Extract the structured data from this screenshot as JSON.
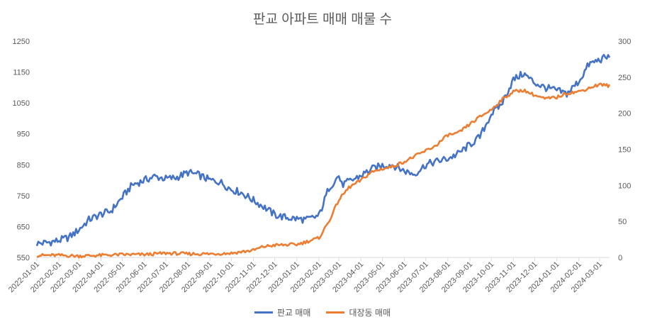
{
  "chart_data": {
    "type": "line",
    "title": "판교 아파트 매매 매물 수",
    "xlabel": "",
    "ylabel": "",
    "x_start": "2022-01-01",
    "x_end": "2024-03-15",
    "x_ticks": [
      "2022-01-01",
      "2022-02-01",
      "2022-03-01",
      "2022-04-01",
      "2022-05-01",
      "2022-06-01",
      "2022-07-01",
      "2022-08-01",
      "2022-09-01",
      "2022-10-01",
      "2022-11-01",
      "2022-12-01",
      "2023-01-01",
      "2023-02-01",
      "2023-03-01",
      "2023-04-01",
      "2023-05-01",
      "2023-06-01",
      "2023-07-01",
      "2023-08-01",
      "2023-09-01",
      "2023-10-01",
      "2023-11-01",
      "2023-12-01",
      "2024-01-01",
      "2024-02-01",
      "2024-03-01"
    ],
    "ylim_left": [
      550,
      1250
    ],
    "yticks_left": [
      550,
      650,
      750,
      850,
      950,
      1050,
      1150,
      1250
    ],
    "ylim_right": [
      0,
      300
    ],
    "yticks_right": [
      0,
      50,
      100,
      150,
      200,
      250,
      300
    ],
    "grid": false,
    "legend_position": "bottom",
    "series": [
      {
        "name": "판교 매매",
        "axis": "left",
        "color": "#4472C4",
        "points": [
          [
            "2022-01-01",
            595
          ],
          [
            "2022-01-15",
            598
          ],
          [
            "2022-02-01",
            605
          ],
          [
            "2022-02-15",
            615
          ],
          [
            "2022-03-01",
            640
          ],
          [
            "2022-03-15",
            672
          ],
          [
            "2022-04-01",
            690
          ],
          [
            "2022-04-15",
            700
          ],
          [
            "2022-05-01",
            745
          ],
          [
            "2022-05-15",
            785
          ],
          [
            "2022-06-01",
            800
          ],
          [
            "2022-06-15",
            812
          ],
          [
            "2022-07-01",
            805
          ],
          [
            "2022-07-15",
            808
          ],
          [
            "2022-08-01",
            825
          ],
          [
            "2022-08-15",
            818
          ],
          [
            "2022-09-01",
            800
          ],
          [
            "2022-09-15",
            795
          ],
          [
            "2022-10-01",
            770
          ],
          [
            "2022-10-15",
            760
          ],
          [
            "2022-11-01",
            735
          ],
          [
            "2022-11-15",
            715
          ],
          [
            "2022-12-01",
            688
          ],
          [
            "2022-12-15",
            680
          ],
          [
            "2023-01-01",
            675
          ],
          [
            "2023-01-15",
            672
          ],
          [
            "2023-02-01",
            685
          ],
          [
            "2023-02-15",
            775
          ],
          [
            "2023-03-01",
            815
          ],
          [
            "2023-03-05",
            785
          ],
          [
            "2023-03-15",
            795
          ],
          [
            "2023-04-01",
            815
          ],
          [
            "2023-04-15",
            835
          ],
          [
            "2023-05-01",
            848
          ],
          [
            "2023-05-15",
            850
          ],
          [
            "2023-06-01",
            830
          ],
          [
            "2023-06-15",
            820
          ],
          [
            "2023-07-01",
            850
          ],
          [
            "2023-07-15",
            860
          ],
          [
            "2023-08-01",
            870
          ],
          [
            "2023-08-15",
            885
          ],
          [
            "2023-09-01",
            915
          ],
          [
            "2023-09-15",
            940
          ],
          [
            "2023-10-01",
            1015
          ],
          [
            "2023-10-15",
            1045
          ],
          [
            "2023-11-01",
            1125
          ],
          [
            "2023-11-15",
            1145
          ],
          [
            "2023-12-01",
            1115
          ],
          [
            "2023-12-15",
            1100
          ],
          [
            "2024-01-01",
            1090
          ],
          [
            "2024-01-15",
            1080
          ],
          [
            "2024-02-01",
            1120
          ],
          [
            "2024-02-15",
            1175
          ],
          [
            "2024-03-01",
            1190
          ],
          [
            "2024-03-15",
            1200
          ]
        ]
      },
      {
        "name": "대장동 매매",
        "axis": "right",
        "color": "#ED7D31",
        "points": [
          [
            "2022-01-01",
            3
          ],
          [
            "2022-02-01",
            3
          ],
          [
            "2022-03-01",
            2
          ],
          [
            "2022-04-01",
            3
          ],
          [
            "2022-05-01",
            4
          ],
          [
            "2022-06-01",
            4
          ],
          [
            "2022-07-01",
            6
          ],
          [
            "2022-08-01",
            5
          ],
          [
            "2022-09-01",
            5
          ],
          [
            "2022-10-01",
            6
          ],
          [
            "2022-11-01",
            10
          ],
          [
            "2022-11-15",
            15
          ],
          [
            "2022-12-01",
            17
          ],
          [
            "2023-01-01",
            18
          ],
          [
            "2023-01-15",
            22
          ],
          [
            "2023-02-01",
            27
          ],
          [
            "2023-02-15",
            50
          ],
          [
            "2023-03-01",
            80
          ],
          [
            "2023-03-15",
            97
          ],
          [
            "2023-04-01",
            107
          ],
          [
            "2023-04-15",
            118
          ],
          [
            "2023-05-01",
            123
          ],
          [
            "2023-05-15",
            126
          ],
          [
            "2023-06-01",
            133
          ],
          [
            "2023-06-15",
            140
          ],
          [
            "2023-07-01",
            148
          ],
          [
            "2023-07-15",
            155
          ],
          [
            "2023-08-01",
            170
          ],
          [
            "2023-08-15",
            172
          ],
          [
            "2023-09-01",
            185
          ],
          [
            "2023-09-15",
            195
          ],
          [
            "2023-10-01",
            205
          ],
          [
            "2023-10-15",
            218
          ],
          [
            "2023-11-01",
            230
          ],
          [
            "2023-11-15",
            232
          ],
          [
            "2023-12-01",
            225
          ],
          [
            "2023-12-15",
            220
          ],
          [
            "2024-01-01",
            222
          ],
          [
            "2024-01-15",
            228
          ],
          [
            "2024-02-01",
            230
          ],
          [
            "2024-02-15",
            235
          ],
          [
            "2024-03-01",
            240
          ],
          [
            "2024-03-15",
            238
          ]
        ]
      }
    ]
  }
}
